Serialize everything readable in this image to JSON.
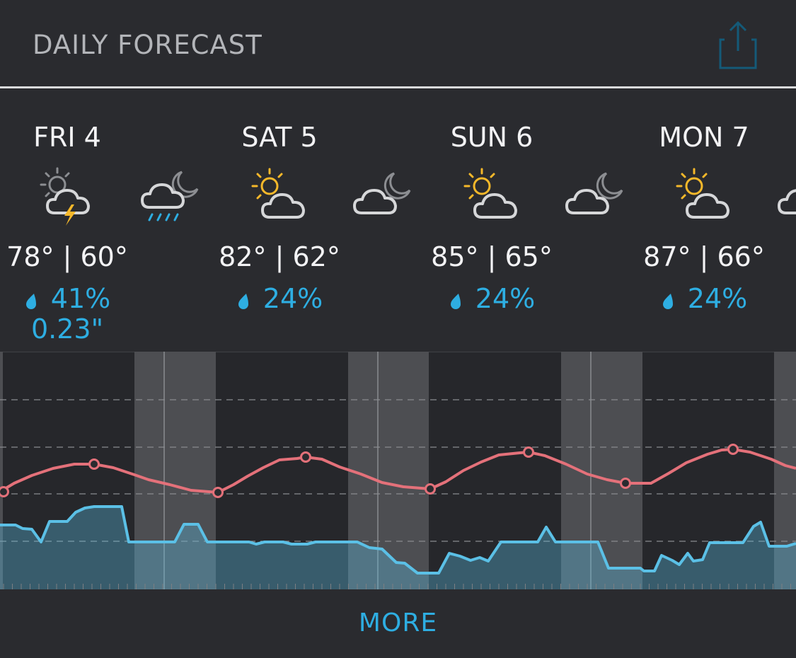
{
  "header": {
    "title": "DAILY FORECAST",
    "share_icon": "share-icon"
  },
  "days": [
    {
      "name": "FRI 4",
      "high": "78°",
      "low": "60°",
      "precip_chance": "41%",
      "precip_amount": "0.23\"",
      "day_icon": "thunderstorm-partly-sunny-icon",
      "night_icon": "rain-cloud-moon-icon"
    },
    {
      "name": "SAT 5",
      "high": "82°",
      "low": "62°",
      "precip_chance": "24%",
      "precip_amount": "",
      "day_icon": "partly-sunny-icon",
      "night_icon": "cloud-moon-icon"
    },
    {
      "name": "SUN 6",
      "high": "85°",
      "low": "65°",
      "precip_chance": "24%",
      "precip_amount": "",
      "day_icon": "partly-sunny-icon",
      "night_icon": "cloud-moon-icon"
    },
    {
      "name": "MON 7",
      "high": "87°",
      "low": "66°",
      "precip_chance": "24%",
      "precip_amount": "",
      "day_icon": "partly-sunny-icon",
      "night_icon": "cloud-moon-icon"
    }
  ],
  "colors": {
    "background": "#2a2b2f",
    "temperature_line": "#e4717a",
    "dewpoint_line": "#5bc0e6",
    "accent": "#2eaee2",
    "sun": "#f5b82a"
  },
  "more_label": "MORE"
}
